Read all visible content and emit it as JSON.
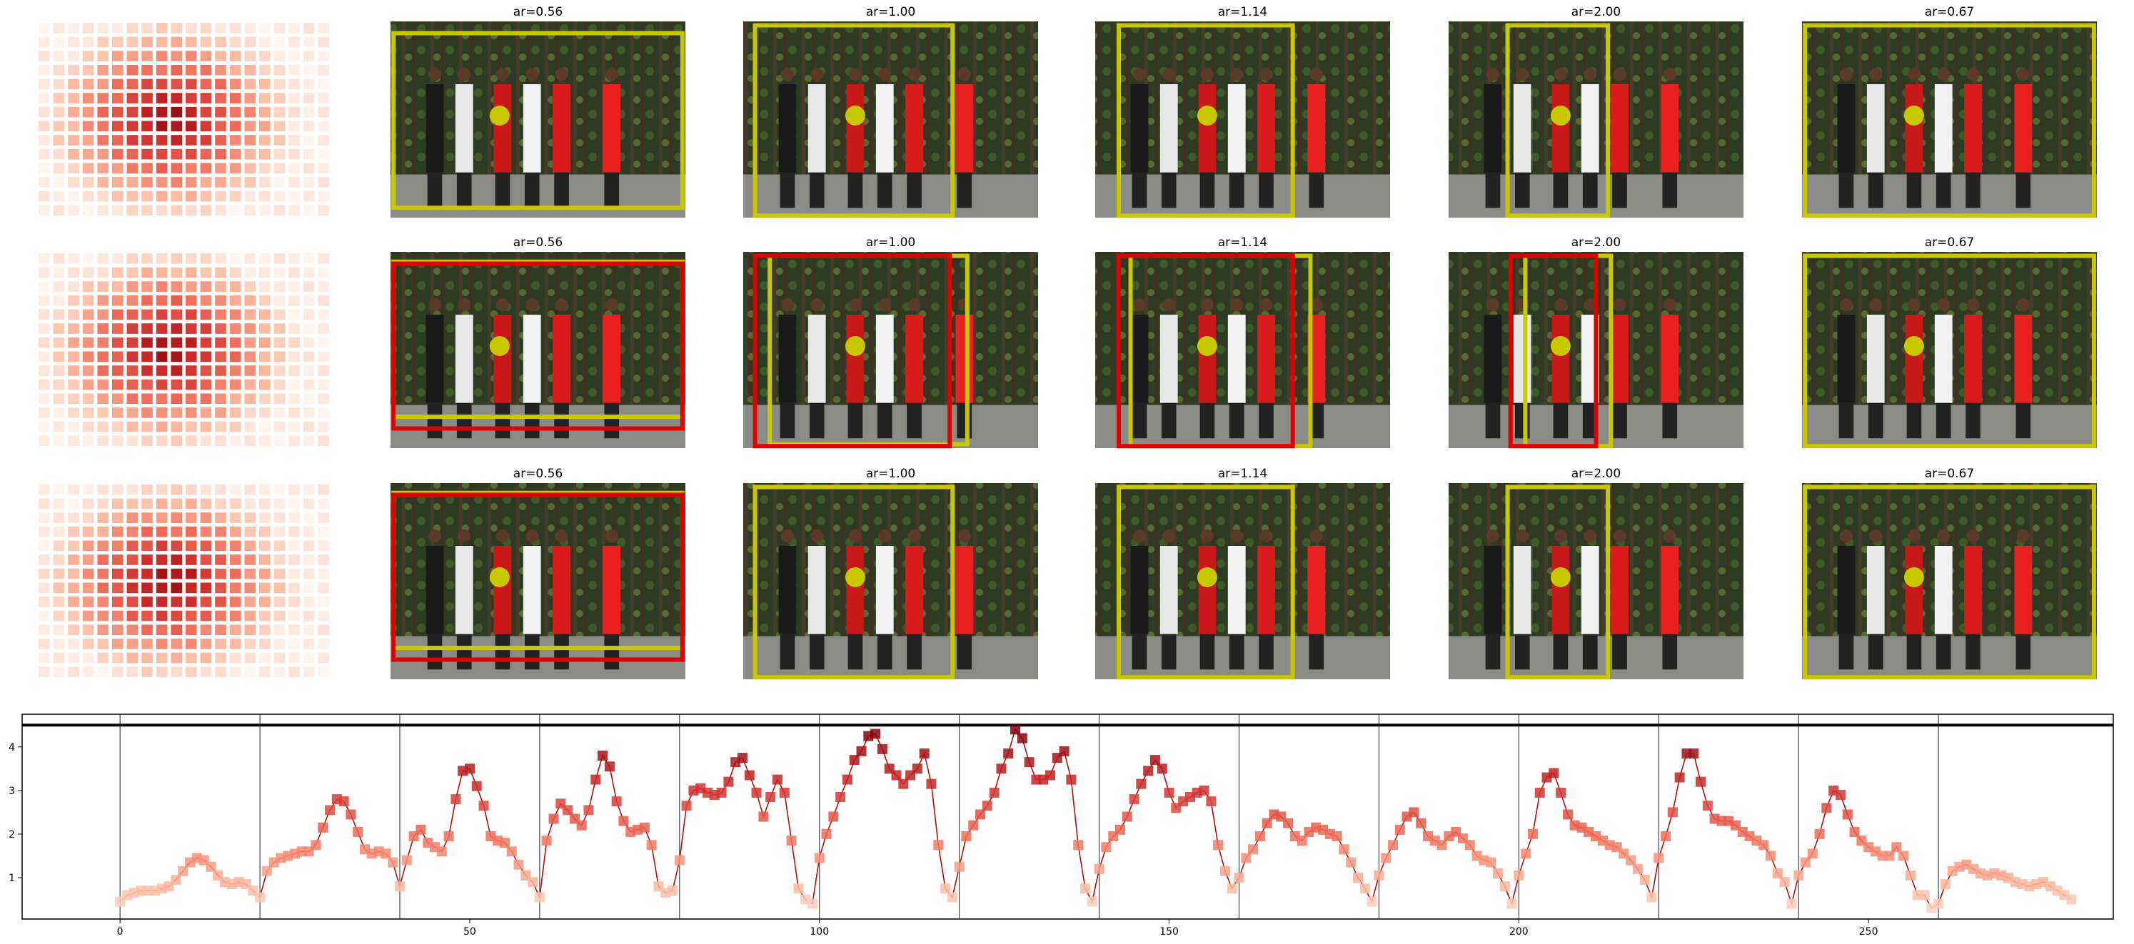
{
  "rows": [
    {
      "panels": [
        {
          "title": "ar=0.56",
          "box_color": "#c8c800",
          "extra_box_color": ""
        },
        {
          "title": "ar=1.00",
          "box_color": "#c8c800",
          "extra_box_color": ""
        },
        {
          "title": "ar=1.14",
          "box_color": "#c8c800",
          "extra_box_color": ""
        },
        {
          "title": "ar=2.00",
          "box_color": "#c8c800",
          "extra_box_color": ""
        },
        {
          "title": "ar=0.67",
          "box_color": "#c8c800",
          "extra_box_color": ""
        }
      ]
    },
    {
      "panels": [
        {
          "title": "ar=0.56",
          "box_color": "#c8c800",
          "extra_box_color": "#e00000"
        },
        {
          "title": "ar=1.00",
          "box_color": "#c8c800",
          "extra_box_color": "#e00000"
        },
        {
          "title": "ar=1.14",
          "box_color": "#c8c800",
          "extra_box_color": "#e00000"
        },
        {
          "title": "ar=2.00",
          "box_color": "#c8c800",
          "extra_box_color": "#e00000"
        },
        {
          "title": "ar=0.67",
          "box_color": "#c8c800",
          "extra_box_color": ""
        }
      ]
    },
    {
      "panels": [
        {
          "title": "ar=0.56",
          "box_color": "#c8c800",
          "extra_box_color": "#e00000"
        },
        {
          "title": "ar=1.00",
          "box_color": "#c8c800",
          "extra_box_color": ""
        },
        {
          "title": "ar=1.14",
          "box_color": "#c8c800",
          "extra_box_color": ""
        },
        {
          "title": "ar=2.00",
          "box_color": "#c8c800",
          "extra_box_color": ""
        },
        {
          "title": "ar=0.67",
          "box_color": "#c8c800",
          "extra_box_color": ""
        }
      ]
    }
  ],
  "chart_data": {
    "type": "line",
    "title": "",
    "xlabel": "",
    "ylabel": "",
    "xlim": [
      -14,
      285
    ],
    "ylim": [
      0.05,
      4.75
    ],
    "x_ticks": [
      0,
      50,
      100,
      150,
      200,
      250
    ],
    "y_ticks": [
      1,
      2,
      3,
      4
    ],
    "grid": false,
    "line_color": "#b01010",
    "marker_shape": "square",
    "separators_x": [
      0,
      20,
      40,
      60,
      80,
      100,
      120,
      140,
      160,
      180,
      200,
      220,
      240,
      260
    ],
    "top_line_y": 4.5,
    "x": [
      0,
      1,
      2,
      3,
      4,
      5,
      6,
      7,
      8,
      9,
      10,
      11,
      12,
      13,
      14,
      15,
      16,
      17,
      18,
      19,
      20,
      21,
      22,
      23,
      24,
      25,
      26,
      27,
      28,
      29,
      30,
      31,
      32,
      33,
      34,
      35,
      36,
      37,
      38,
      39,
      40,
      41,
      42,
      43,
      44,
      45,
      46,
      47,
      48,
      49,
      50,
      51,
      52,
      53,
      54,
      55,
      56,
      57,
      58,
      59,
      60,
      61,
      62,
      63,
      64,
      65,
      66,
      67,
      68,
      69,
      70,
      71,
      72,
      73,
      74,
      75,
      76,
      77,
      78,
      79,
      80,
      81,
      82,
      83,
      84,
      85,
      86,
      87,
      88,
      89,
      90,
      91,
      92,
      93,
      94,
      95,
      96,
      97,
      98,
      99,
      100,
      101,
      102,
      103,
      104,
      105,
      106,
      107,
      108,
      109,
      110,
      111,
      112,
      113,
      114,
      115,
      116,
      117,
      118,
      119,
      120,
      121,
      122,
      123,
      124,
      125,
      126,
      127,
      128,
      129,
      130,
      131,
      132,
      133,
      134,
      135,
      136,
      137,
      138,
      139,
      140,
      141,
      142,
      143,
      144,
      145,
      146,
      147,
      148,
      149,
      150,
      151,
      152,
      153,
      154,
      155,
      156,
      157,
      158,
      159,
      160,
      161,
      162,
      163,
      164,
      165,
      166,
      167,
      168,
      169,
      170,
      171,
      172,
      173,
      174,
      175,
      176,
      177,
      178,
      179,
      180,
      181,
      182,
      183,
      184,
      185,
      186,
      187,
      188,
      189,
      190,
      191,
      192,
      193,
      194,
      195,
      196,
      197,
      198,
      199,
      200,
      201,
      202,
      203,
      204,
      205,
      206,
      207,
      208,
      209,
      210,
      211,
      212,
      213,
      214,
      215,
      216,
      217,
      218,
      219,
      220,
      221,
      222,
      223,
      224,
      225,
      226,
      227,
      228,
      229,
      230,
      231,
      232,
      233,
      234,
      235,
      236,
      237,
      238,
      239,
      240,
      241,
      242,
      243,
      244,
      245,
      246,
      247,
      248,
      249,
      250,
      251,
      252,
      253,
      254,
      255,
      256,
      257,
      258,
      259,
      260,
      261,
      262,
      263,
      264,
      265,
      266,
      267,
      268,
      269,
      270,
      271,
      272,
      273,
      274,
      275,
      276,
      277,
      278,
      279
    ],
    "values": [
      0.45,
      0.6,
      0.65,
      0.7,
      0.7,
      0.7,
      0.75,
      0.8,
      0.95,
      1.15,
      1.35,
      1.45,
      1.4,
      1.25,
      1.05,
      0.9,
      0.85,
      0.9,
      0.85,
      0.7,
      0.55,
      1.15,
      1.35,
      1.45,
      1.5,
      1.55,
      1.6,
      1.6,
      1.75,
      2.15,
      2.55,
      2.8,
      2.75,
      2.45,
      2.05,
      1.65,
      1.55,
      1.6,
      1.55,
      1.35,
      0.8,
      1.4,
      1.95,
      2.1,
      1.8,
      1.7,
      1.6,
      1.95,
      2.8,
      3.45,
      3.5,
      3.1,
      2.65,
      1.95,
      1.85,
      1.8,
      1.6,
      1.3,
      1.05,
      0.9,
      0.55,
      1.85,
      2.35,
      2.7,
      2.55,
      2.35,
      2.2,
      2.55,
      3.25,
      3.8,
      3.55,
      2.75,
      2.3,
      2.05,
      2.1,
      2.15,
      1.75,
      0.8,
      0.65,
      0.7,
      1.4,
      2.65,
      3.0,
      3.05,
      2.95,
      2.9,
      2.95,
      3.2,
      3.65,
      3.75,
      3.35,
      2.95,
      2.4,
      2.85,
      3.25,
      2.95,
      1.85,
      0.75,
      0.5,
      0.4,
      1.45,
      2.0,
      2.4,
      2.85,
      3.25,
      3.7,
      3.9,
      4.25,
      4.3,
      3.95,
      3.5,
      3.35,
      3.15,
      3.35,
      3.5,
      3.85,
      3.15,
      1.75,
      0.75,
      0.55,
      1.25,
      1.95,
      2.2,
      2.45,
      2.65,
      2.95,
      3.5,
      3.85,
      4.4,
      4.2,
      3.65,
      3.25,
      3.25,
      3.35,
      3.75,
      3.9,
      3.25,
      1.75,
      0.75,
      0.45,
      1.2,
      1.7,
      1.95,
      2.1,
      2.4,
      2.8,
      3.15,
      3.45,
      3.7,
      3.5,
      2.95,
      2.6,
      2.75,
      2.85,
      2.95,
      3.0,
      2.75,
      1.75,
      1.15,
      0.75,
      1.0,
      1.45,
      1.65,
      1.95,
      2.25,
      2.45,
      2.4,
      2.25,
      1.95,
      1.85,
      2.05,
      2.15,
      2.1,
      2.0,
      1.95,
      1.65,
      1.35,
      1.0,
      0.75,
      0.45,
      1.05,
      1.45,
      1.75,
      2.1,
      2.4,
      2.5,
      2.25,
      1.95,
      1.85,
      1.75,
      1.95,
      2.05,
      1.9,
      1.75,
      1.5,
      1.4,
      1.35,
      1.1,
      0.8,
      0.4,
      1.05,
      1.55,
      2.0,
      2.95,
      3.3,
      3.4,
      2.95,
      2.45,
      2.2,
      2.15,
      2.05,
      1.95,
      1.85,
      1.75,
      1.7,
      1.55,
      1.4,
      1.2,
      0.95,
      0.55,
      1.45,
      1.95,
      2.5,
      3.3,
      3.85,
      3.85,
      3.2,
      2.65,
      2.35,
      2.3,
      2.3,
      2.2,
      2.05,
      1.95,
      1.85,
      1.75,
      1.5,
      1.1,
      0.9,
      0.4,
      1.05,
      1.35,
      1.55,
      2.0,
      2.6,
      3.0,
      2.9,
      2.45,
      2.05,
      1.85,
      1.7,
      1.6,
      1.5,
      1.5,
      1.7,
      1.5,
      1.05,
      0.6,
      0.6,
      0.3,
      0.4,
      0.85,
      1.15,
      1.25,
      1.3,
      1.2,
      1.1,
      1.05,
      1.1,
      1.05,
      1.0,
      0.9,
      0.85,
      0.8,
      0.85,
      0.9,
      0.8,
      0.7,
      0.6,
      0.5
    ]
  }
}
